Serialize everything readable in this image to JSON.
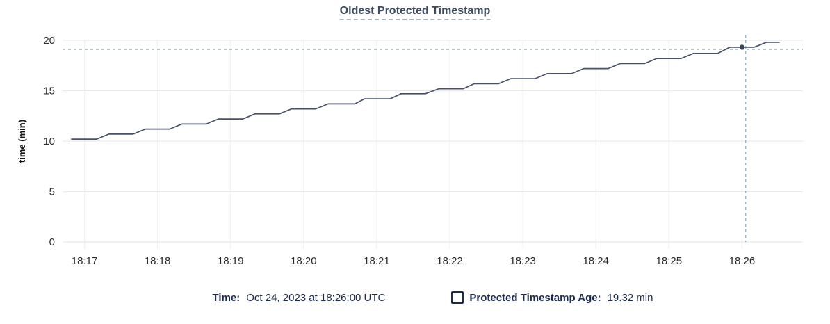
{
  "title": "Oldest Protected Timestamp",
  "tooltip": {
    "time_label": "Time:",
    "time_value": "Oct 24, 2023 at 18:26:00 UTC",
    "series_label": "Protected Timestamp Age:",
    "series_value": "19.32 min"
  },
  "colors": {
    "navy_text": "#1c2c4e",
    "line": "#475068",
    "dot": "#394455",
    "crosshair": "#9db4c0",
    "grid": "#e9e9e9",
    "grid_light": "#f1f1f1",
    "axis_text": "#2b2b2b",
    "title_text": "#3e4c61",
    "background": "#ffffff"
  },
  "chart_data": {
    "type": "line",
    "title": "Oldest Protected Timestamp",
    "xlabel": "",
    "ylabel": "time (min)",
    "ylim": [
      0,
      20
    ],
    "y_ticks": [
      0,
      5,
      10,
      15,
      20
    ],
    "x_ticks": [
      "18:17",
      "18:18",
      "18:19",
      "18:20",
      "18:21",
      "18:22",
      "18:23",
      "18:24",
      "18:25",
      "18:26"
    ],
    "x_domain": [
      "18:16:42",
      "18:26:50"
    ],
    "grid": true,
    "legend_position": "bottom",
    "series": [
      {
        "name": "Protected Timestamp Age",
        "unit": "min",
        "points": [
          [
            "18:16:49",
            10.2
          ],
          [
            "18:17:10",
            10.2
          ],
          [
            "18:17:20",
            10.7
          ],
          [
            "18:17:40",
            10.7
          ],
          [
            "18:17:50",
            11.2
          ],
          [
            "18:18:10",
            11.2
          ],
          [
            "18:18:20",
            11.7
          ],
          [
            "18:18:40",
            11.7
          ],
          [
            "18:18:50",
            12.2
          ],
          [
            "18:19:10",
            12.2
          ],
          [
            "18:19:20",
            12.7
          ],
          [
            "18:19:40",
            12.7
          ],
          [
            "18:19:50",
            13.2
          ],
          [
            "18:20:10",
            13.2
          ],
          [
            "18:20:20",
            13.7
          ],
          [
            "18:20:42",
            13.7
          ],
          [
            "18:20:50",
            14.2
          ],
          [
            "18:21:11",
            14.2
          ],
          [
            "18:21:20",
            14.7
          ],
          [
            "18:21:40",
            14.7
          ],
          [
            "18:21:51",
            15.2
          ],
          [
            "18:22:11",
            15.2
          ],
          [
            "18:22:20",
            15.7
          ],
          [
            "18:22:40",
            15.7
          ],
          [
            "18:22:50",
            16.2
          ],
          [
            "18:23:10",
            16.2
          ],
          [
            "18:23:20",
            16.7
          ],
          [
            "18:23:40",
            16.7
          ],
          [
            "18:23:50",
            17.2
          ],
          [
            "18:24:10",
            17.2
          ],
          [
            "18:24:20",
            17.7
          ],
          [
            "18:24:40",
            17.7
          ],
          [
            "18:24:50",
            18.2
          ],
          [
            "18:25:10",
            18.2
          ],
          [
            "18:25:20",
            18.7
          ],
          [
            "18:25:40",
            18.7
          ],
          [
            "18:25:50",
            19.32
          ],
          [
            "18:26:10",
            19.32
          ],
          [
            "18:26:20",
            19.8
          ],
          [
            "18:26:31",
            19.8
          ]
        ]
      }
    ],
    "hover": {
      "time": "18:26:00",
      "value": 19.32,
      "crosshair_time": "18:26:03",
      "crosshair_value": 19.1
    }
  }
}
